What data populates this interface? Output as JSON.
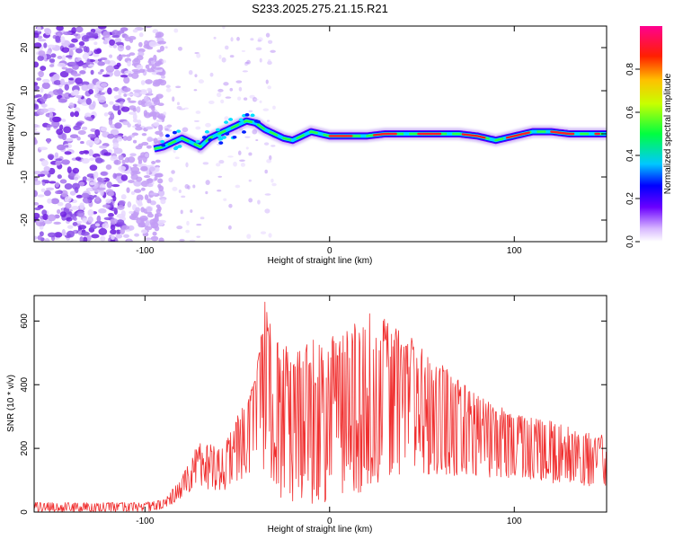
{
  "figure": {
    "title": "S233.2025.275.21.15.R21"
  },
  "chart_data": [
    {
      "type": "heatmap",
      "name": "spectrogram",
      "xlabel": "Height of straight line (km)",
      "ylabel": "Frequency (Hz)",
      "xlim": [
        -160,
        150
      ],
      "ylim": [
        -25,
        25
      ],
      "xticks": [
        -100,
        0,
        100
      ],
      "xtick_labels": [
        "-100",
        "0",
        "100"
      ],
      "yticks": [
        -20,
        -10,
        0,
        10,
        20
      ],
      "ytick_labels": [
        "-20",
        "-10",
        "0",
        "10",
        "20"
      ],
      "ridge": {
        "x": [
          -95,
          -90,
          -85,
          -80,
          -75,
          -70,
          -65,
          -60,
          -55,
          -50,
          -45,
          -40,
          -35,
          -30,
          -25,
          -20,
          -15,
          -10,
          -5,
          0,
          10,
          20,
          30,
          40,
          50,
          60,
          70,
          80,
          90,
          100,
          110,
          120,
          130,
          140,
          150
        ],
        "y": [
          -3.5,
          -3,
          -2,
          -1,
          -2,
          -3,
          -1,
          0,
          1,
          2,
          3,
          2.5,
          1,
          0,
          -1,
          -1.5,
          -0.5,
          0.5,
          0,
          -0.5,
          -0.5,
          -0.5,
          0,
          0,
          0,
          0,
          0,
          -0.5,
          -1.5,
          -0.5,
          0.5,
          0.5,
          0,
          0,
          0
        ]
      },
      "colorbar": {
        "label": "Normalized spectral amplitude",
        "range": [
          0,
          1
        ],
        "ticks": [
          0.0,
          0.2,
          0.4,
          0.6,
          0.8
        ],
        "tick_labels": [
          "0.0",
          "0.2",
          "0.4",
          "0.6",
          "0.8"
        ]
      }
    },
    {
      "type": "line",
      "name": "snr",
      "xlabel": "Height of straight line (km)",
      "ylabel": "SNR (10 * v/v)",
      "xlim": [
        -160,
        150
      ],
      "ylim": [
        0,
        680
      ],
      "xticks": [
        -100,
        0,
        100
      ],
      "xtick_labels": [
        "-100",
        "0",
        "100"
      ],
      "yticks": [
        0,
        200,
        400,
        600
      ],
      "ytick_labels": [
        "0",
        "200",
        "400",
        "600"
      ],
      "color": "#f03030",
      "envelope": {
        "x": [
          -160,
          -100,
          -90,
          -80,
          -70,
          -60,
          -50,
          -40,
          -35,
          -30,
          -20,
          -10,
          0,
          10,
          20,
          30,
          40,
          50,
          60,
          70,
          80,
          90,
          100,
          110,
          120,
          130,
          140,
          150
        ],
        "upper": [
          30,
          30,
          40,
          110,
          230,
          200,
          300,
          420,
          680,
          560,
          500,
          540,
          560,
          580,
          630,
          610,
          580,
          520,
          470,
          430,
          370,
          340,
          310,
          300,
          290,
          270,
          250,
          240
        ],
        "lower": [
          0,
          0,
          10,
          40,
          80,
          60,
          80,
          140,
          100,
          60,
          20,
          20,
          30,
          40,
          60,
          80,
          100,
          110,
          120,
          110,
          110,
          100,
          100,
          100,
          90,
          90,
          80,
          80
        ]
      }
    }
  ]
}
